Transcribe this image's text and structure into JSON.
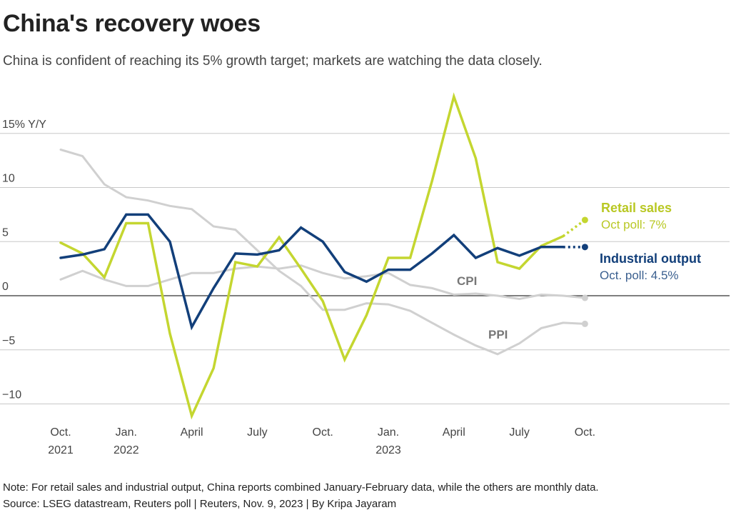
{
  "header": {
    "title": "China's recovery woes",
    "subtitle": "China is confident of reaching its 5% growth target; markets are watching the data closely."
  },
  "footer": {
    "note": "Note: For retail sales and industrial output, China reports combined January-February data, while the others are monthly data.",
    "source": "Source: LSEG datastream, Reuters poll | Reuters, Nov. 9, 2023 | By Kripa Jayaram"
  },
  "chart_data": {
    "type": "line",
    "ylabel": "15% Y/Y",
    "ylim": [
      -11,
      19
    ],
    "y_ticks": [
      {
        "value": 15,
        "label": "15% Y/Y"
      },
      {
        "value": 10,
        "label": "10"
      },
      {
        "value": 5,
        "label": "5"
      },
      {
        "value": 0,
        "label": "0"
      },
      {
        "value": -5,
        "label": "−5"
      },
      {
        "value": -10,
        "label": "−10"
      }
    ],
    "x_months": [
      "2021-10",
      "2021-11",
      "2021-12",
      "2022-01",
      "2022-02",
      "2022-03",
      "2022-04",
      "2022-05",
      "2022-06",
      "2022-07",
      "2022-08",
      "2022-09",
      "2022-10",
      "2022-11",
      "2022-12",
      "2023-01",
      "2023-02",
      "2023-03",
      "2023-04",
      "2023-05",
      "2023-06",
      "2023-07",
      "2023-08",
      "2023-09",
      "2023-10"
    ],
    "x_ticks": [
      {
        "month": "2021-10",
        "line1": "Oct.",
        "line2": "2021"
      },
      {
        "month": "2022-01",
        "line1": "Jan.",
        "line2": "2022"
      },
      {
        "month": "2022-04",
        "line1": "April",
        "line2": ""
      },
      {
        "month": "2022-07",
        "line1": "July",
        "line2": ""
      },
      {
        "month": "2022-10",
        "line1": "Oct.",
        "line2": ""
      },
      {
        "month": "2023-01",
        "line1": "Jan.",
        "line2": "2023"
      },
      {
        "month": "2023-04",
        "line1": "April",
        "line2": ""
      },
      {
        "month": "2023-07",
        "line1": "July",
        "line2": ""
      },
      {
        "month": "2023-10",
        "line1": "Oct.",
        "line2": ""
      }
    ],
    "series": [
      {
        "name": "PPI",
        "color": "#d0d0d0",
        "values": [
          13.5,
          12.9,
          10.3,
          9.1,
          8.8,
          8.3,
          8.0,
          6.4,
          6.1,
          4.2,
          2.3,
          0.9,
          -1.3,
          -1.3,
          -0.7,
          -0.8,
          -1.4,
          -2.5,
          -3.6,
          -4.6,
          -5.4,
          -4.4,
          -3.0,
          -2.5,
          -2.6
        ],
        "poll_value": null
      },
      {
        "name": "CPI",
        "color": "#d0d0d0",
        "values": [
          1.5,
          2.3,
          1.5,
          0.9,
          0.9,
          1.5,
          2.1,
          2.1,
          2.5,
          2.7,
          2.5,
          2.8,
          2.1,
          1.6,
          1.8,
          2.1,
          1.0,
          0.7,
          0.1,
          0.2,
          0.0,
          -0.3,
          0.1,
          0.0,
          -0.2
        ],
        "poll_value": null
      },
      {
        "name": "Retail sales",
        "color": "#c4d630",
        "values": [
          4.9,
          3.9,
          1.7,
          6.7,
          6.7,
          -3.5,
          -11.1,
          -6.7,
          3.1,
          2.7,
          5.4,
          2.5,
          -0.5,
          -5.9,
          -1.8,
          3.5,
          3.5,
          10.6,
          18.4,
          12.7,
          3.1,
          2.5,
          4.6,
          5.5,
          null
        ],
        "poll_value": 7.0,
        "label": "Retail sales",
        "poll_label": "Oct poll: 7%"
      },
      {
        "name": "Industrial output",
        "color": "#123f7a",
        "values": [
          3.5,
          3.8,
          4.3,
          7.5,
          7.5,
          5.0,
          -2.9,
          0.7,
          3.9,
          3.8,
          4.2,
          6.3,
          5.0,
          2.2,
          1.3,
          2.4,
          2.4,
          3.9,
          5.6,
          3.5,
          4.4,
          3.7,
          4.5,
          4.5,
          null
        ],
        "poll_value": 4.5,
        "label": "Industrial output",
        "poll_label": "Oct. poll: 4.5%"
      }
    ],
    "inline_labels": [
      {
        "series": "CPI",
        "text": "CPI"
      },
      {
        "series": "PPI",
        "text": "PPI"
      }
    ]
  }
}
